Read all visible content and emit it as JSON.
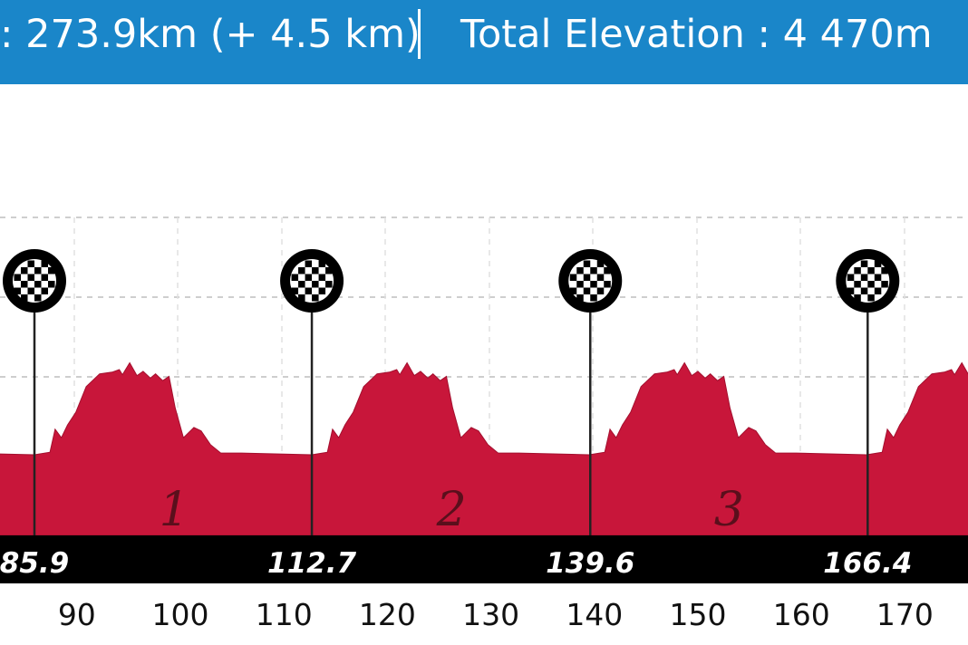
{
  "header": {
    "distance_text": ": 273.9km (+ 4.5 km)",
    "elevation_text": "Total Elevation : 4 470m"
  },
  "colors": {
    "header_bg": "#1a86c9",
    "profile_fill": "#c8163a",
    "bar_bg": "#000000",
    "grid": "#bdbdbd"
  },
  "chart_data": {
    "type": "area",
    "x_unit": "km",
    "xlim": [
      80,
      183
    ],
    "x_ticks": [
      90,
      100,
      110,
      120,
      130,
      140,
      150,
      160,
      170
    ],
    "split_markers": [
      85.9,
      112.7,
      139.6,
      166.4
    ],
    "split_marker_icon": "checkered-flag-icon",
    "lap_numbers": [
      "1",
      "2",
      "3"
    ],
    "lap_number_positions_km": [
      99.4,
      126.2,
      153.0
    ],
    "profile_shape": {
      "period_km": 26.8,
      "start_km": 85.9,
      "points": [
        [
          0.0,
          0.0
        ],
        [
          1.5,
          0.03
        ],
        [
          2.0,
          0.3
        ],
        [
          2.6,
          0.2
        ],
        [
          3.2,
          0.35
        ],
        [
          4.0,
          0.5
        ],
        [
          5.0,
          0.8
        ],
        [
          6.3,
          0.95
        ],
        [
          7.5,
          0.97
        ],
        [
          8.2,
          1.0
        ],
        [
          8.5,
          0.94
        ],
        [
          9.2,
          1.08
        ],
        [
          9.9,
          0.93
        ],
        [
          10.5,
          0.98
        ],
        [
          11.2,
          0.9
        ],
        [
          11.7,
          0.95
        ],
        [
          12.4,
          0.87
        ],
        [
          13.0,
          0.92
        ],
        [
          13.6,
          0.55
        ],
        [
          14.4,
          0.2
        ],
        [
          15.4,
          0.32
        ],
        [
          16.1,
          0.28
        ],
        [
          17.0,
          0.12
        ],
        [
          18.0,
          0.02
        ],
        [
          20.0,
          0.02
        ],
        [
          26.8,
          0.0
        ]
      ]
    }
  }
}
